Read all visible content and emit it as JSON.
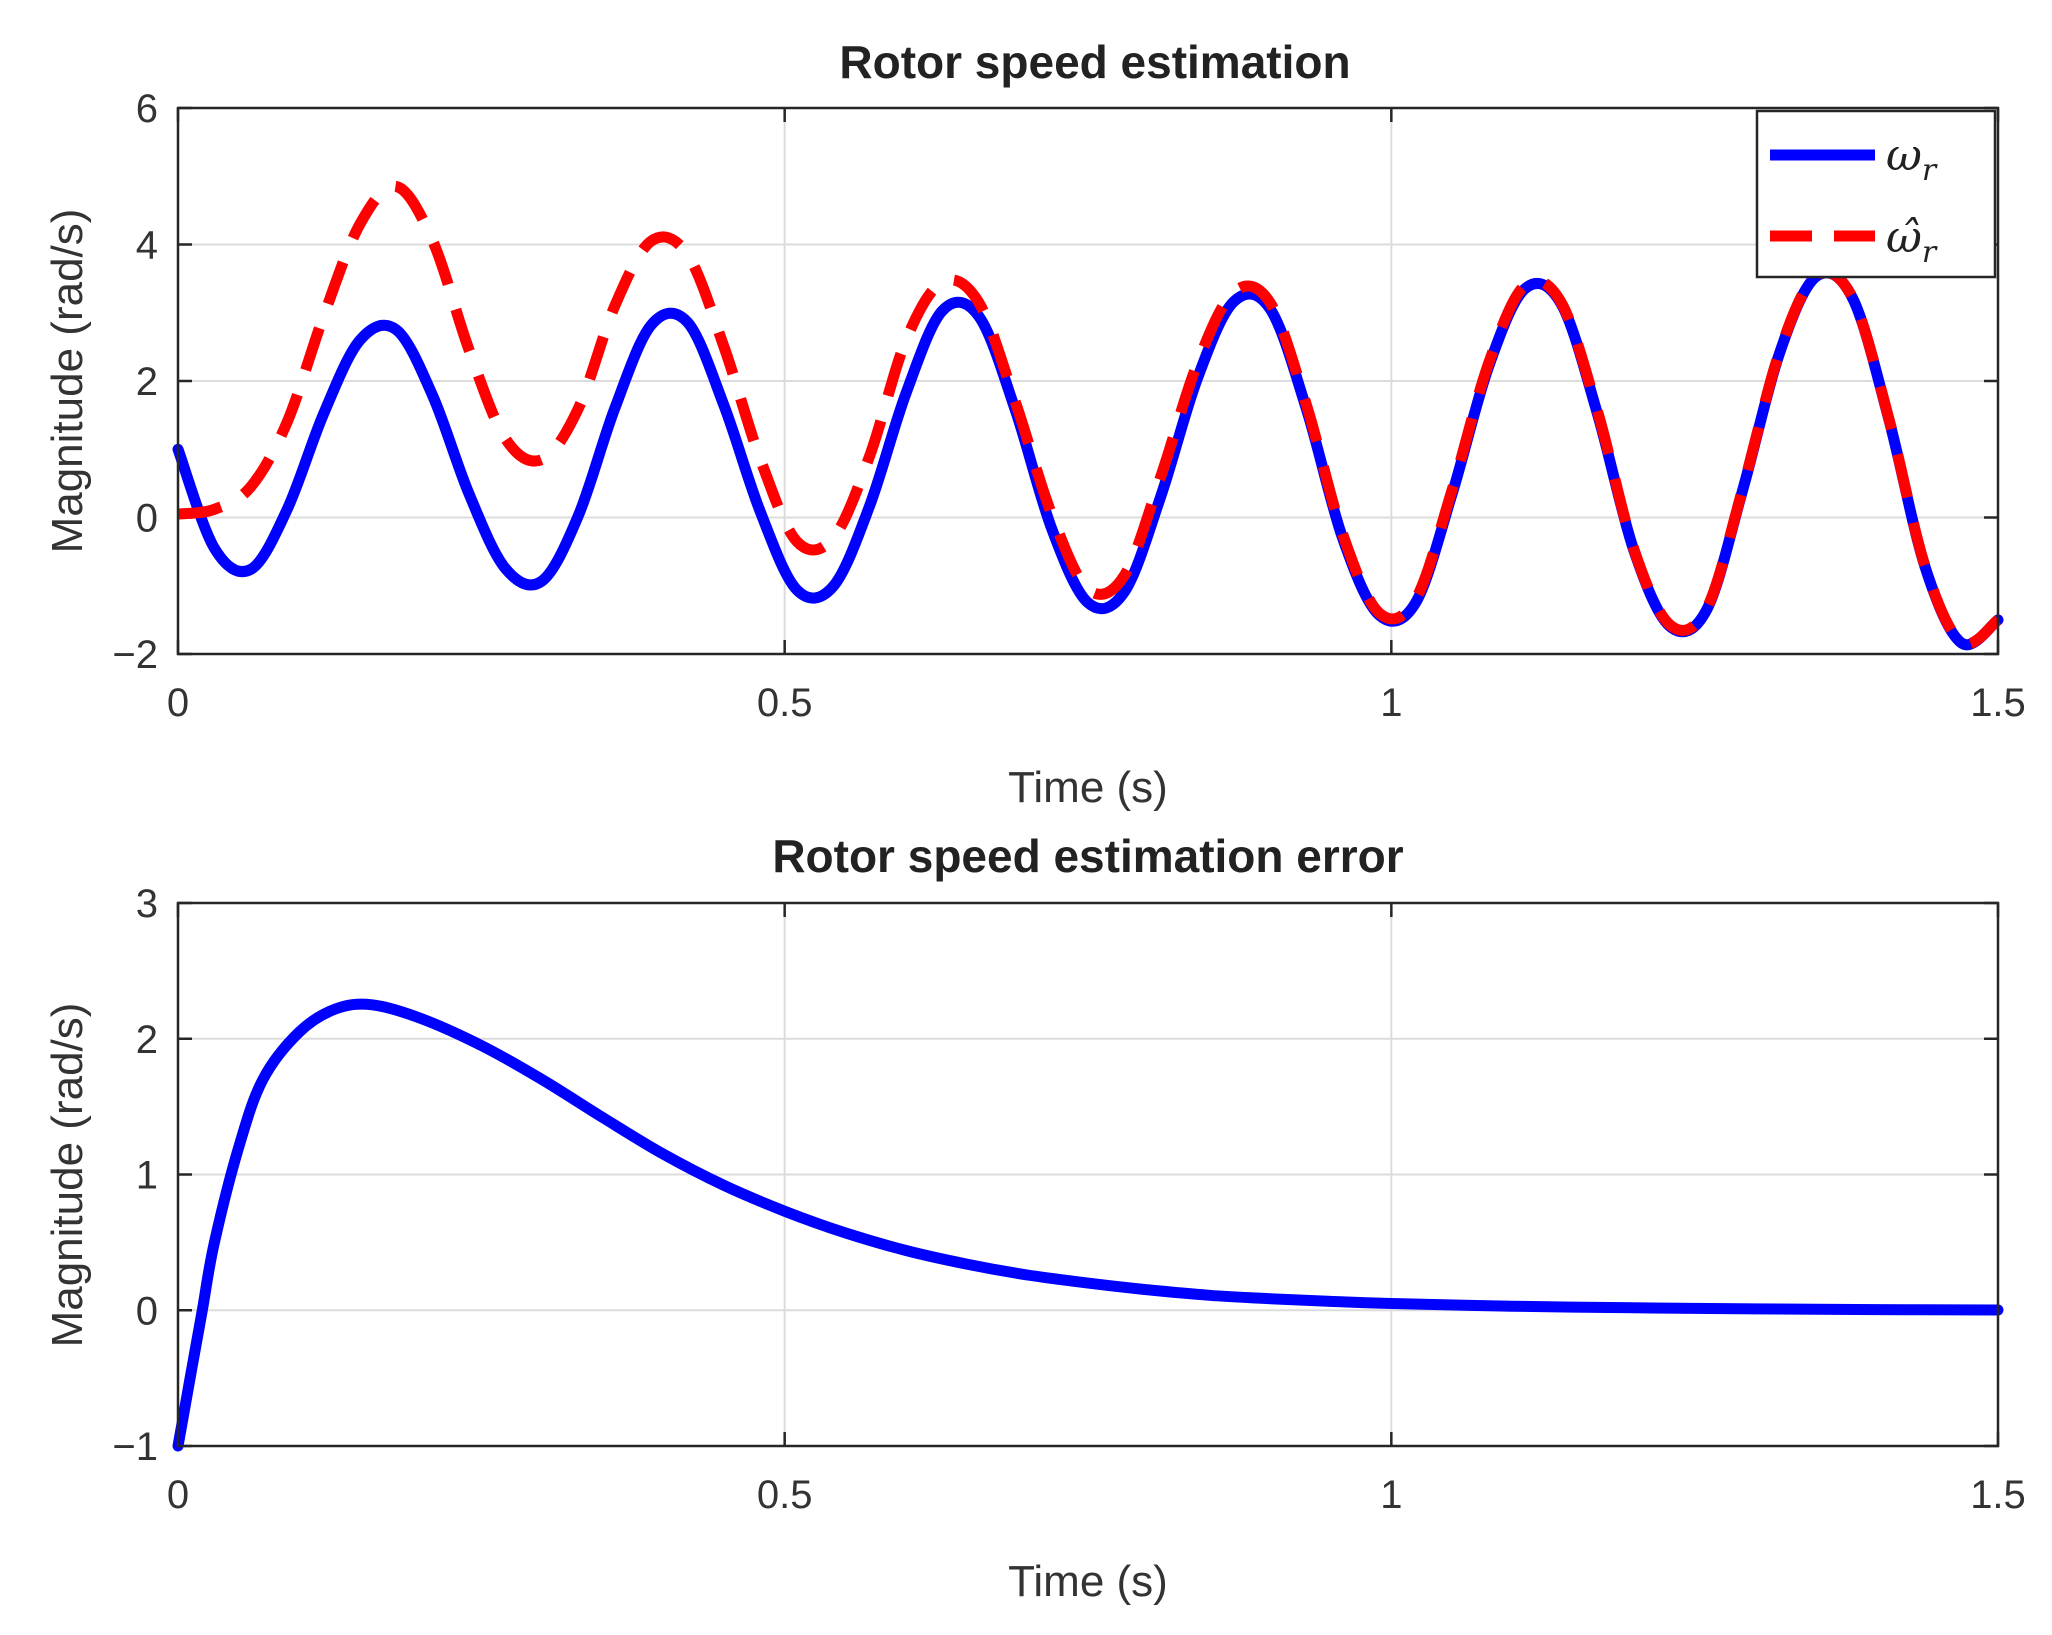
{
  "chart_data": [
    {
      "type": "line",
      "title": "Rotor speed estimation",
      "xlabel": "Time (s)",
      "ylabel": "Magnitude (rad/s)",
      "xlim": [
        0,
        1.5
      ],
      "ylim": [
        -2,
        6
      ],
      "xticks": [
        0,
        0.5,
        1,
        1.5
      ],
      "xtick_labels": [
        "0",
        "0.5",
        "1",
        "1.5"
      ],
      "yticks": [
        -2,
        0,
        2,
        4,
        6
      ],
      "ytick_labels": [
        "−2",
        "0",
        "2",
        "4",
        "6"
      ],
      "grid": true,
      "legend_position": "top-right",
      "series": [
        {
          "name": "ωr",
          "symbol": "ω",
          "subscript": "r",
          "color": "#0000ff",
          "style": "solid",
          "x": [
            0,
            0.03,
            0.06,
            0.09,
            0.12,
            0.15,
            0.18,
            0.21,
            0.24,
            0.27,
            0.3,
            0.33,
            0.36,
            0.39,
            0.42,
            0.45,
            0.48,
            0.51,
            0.54,
            0.57,
            0.6,
            0.63,
            0.66,
            0.69,
            0.72,
            0.75,
            0.78,
            0.81,
            0.84,
            0.87,
            0.9,
            0.93,
            0.96,
            0.99,
            1.02,
            1.05,
            1.08,
            1.11,
            1.14,
            1.17,
            1.2,
            1.23,
            1.26,
            1.29,
            1.32,
            1.35,
            1.38,
            1.41,
            1.44,
            1.47,
            1.5
          ],
          "y": [
            1.0,
            -0.45,
            -0.76,
            0.12,
            1.52,
            2.6,
            2.75,
            1.78,
            0.34,
            -0.75,
            -0.93,
            0.03,
            1.6,
            2.82,
            2.86,
            1.64,
            0.08,
            -1.06,
            -1.01,
            0.17,
            1.82,
            3.03,
            2.95,
            1.58,
            -0.16,
            -1.25,
            -1.09,
            0.31,
            2.03,
            3.16,
            3.06,
            1.59,
            -0.31,
            -1.43,
            -1.25,
            0.34,
            2.2,
            3.35,
            3.13,
            1.51,
            -0.49,
            -1.6,
            -1.35,
            0.43,
            2.41,
            3.53,
            3.22,
            1.44,
            -0.73,
            -1.84,
            -1.5
          ]
        },
        {
          "name": "ω̂r",
          "symbol": "ω̂",
          "subscript": "r",
          "color": "#ff0000",
          "style": "dashed",
          "x": [
            0,
            0.03,
            0.06,
            0.09,
            0.12,
            0.15,
            0.18,
            0.21,
            0.24,
            0.27,
            0.3,
            0.33,
            0.36,
            0.39,
            0.42,
            0.45,
            0.48,
            0.51,
            0.54,
            0.57,
            0.6,
            0.63,
            0.66,
            0.69,
            0.72,
            0.75,
            0.78,
            0.81,
            0.84,
            0.87,
            0.9,
            0.93,
            0.96,
            0.99,
            1.02,
            1.05,
            1.08,
            1.11,
            1.14,
            1.17,
            1.2,
            1.23,
            1.26,
            1.29,
            1.32,
            1.35,
            1.38,
            1.41,
            1.44,
            1.47,
            1.5
          ],
          "y": [
            0.05,
            0.12,
            0.45,
            1.4,
            2.95,
            4.3,
            4.85,
            4.05,
            2.45,
            1.15,
            0.85,
            1.6,
            3.1,
            4.05,
            3.85,
            2.5,
            0.85,
            -0.35,
            -0.3,
            0.9,
            2.6,
            3.45,
            3.15,
            1.7,
            0.05,
            -1.05,
            -0.85,
            0.6,
            2.25,
            3.3,
            3.15,
            1.65,
            -0.25,
            -1.4,
            -1.2,
            0.4,
            2.25,
            3.4,
            3.15,
            1.55,
            -0.47,
            -1.58,
            -1.33,
            0.45,
            2.43,
            3.54,
            3.22,
            1.45,
            -0.72,
            -1.83,
            -1.5
          ]
        }
      ]
    },
    {
      "type": "line",
      "title": "Rotor speed estimation error",
      "xlabel": "Time (s)",
      "ylabel": "Magnitude (rad/s)",
      "xlim": [
        0,
        1.5
      ],
      "ylim": [
        -1,
        3
      ],
      "xticks": [
        0,
        0.5,
        1,
        1.5
      ],
      "xtick_labels": [
        "0",
        "0.5",
        "1",
        "1.5"
      ],
      "yticks": [
        -1,
        0,
        1,
        2,
        3
      ],
      "ytick_labels": [
        "−1",
        "0",
        "1",
        "2",
        "3"
      ],
      "grid": true,
      "series": [
        {
          "name": "error",
          "color": "#0000ff",
          "style": "solid",
          "x": [
            0,
            0.01,
            0.02,
            0.03,
            0.05,
            0.07,
            0.1,
            0.13,
            0.16,
            0.2,
            0.25,
            0.3,
            0.35,
            0.4,
            0.45,
            0.5,
            0.55,
            0.6,
            0.65,
            0.7,
            0.75,
            0.8,
            0.85,
            0.9,
            0.95,
            1.0,
            1.1,
            1.2,
            1.3,
            1.4,
            1.5
          ],
          "y": [
            -1.0,
            -0.5,
            0.0,
            0.5,
            1.2,
            1.7,
            2.05,
            2.22,
            2.25,
            2.15,
            1.95,
            1.7,
            1.42,
            1.15,
            0.92,
            0.73,
            0.57,
            0.44,
            0.34,
            0.26,
            0.2,
            0.15,
            0.11,
            0.085,
            0.065,
            0.05,
            0.03,
            0.018,
            0.01,
            0.005,
            0.002
          ]
        }
      ]
    }
  ]
}
